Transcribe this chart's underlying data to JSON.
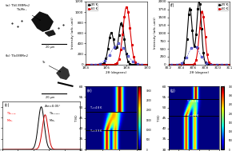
{
  "panel_a_label": "(a) Tb$_{0.999}$Mn$_2$",
  "panel_b_label": "(b) Tb$_{0.99}$Mn$_2$",
  "panel_c_delta": "Δre=0.05°",
  "panel_c_left": "Tb$_{0.999}$Mn$_2$",
  "panel_c_right": "Tb$_{0.9999}$Mn$_2$",
  "temp_35K": "35 K",
  "temp_60K": "60 K",
  "bg_color_ab": "#aaaaaa",
  "xrange_c": [
    38.6,
    39.6
  ],
  "xrange_d": [
    18.4,
    19.0
  ],
  "xrange_fg": [
    30.2,
    31.2
  ],
  "yrange_c": [
    0,
    18000
  ],
  "yrange_d": [
    0,
    1200
  ],
  "yrange_f": [
    0,
    2000
  ],
  "T_range": [
    30,
    60
  ],
  "Tc_e1": 39,
  "Tc_e2": 48,
  "Tc_g1": 46,
  "Tc_g2": 54,
  "label_e1": "T$_2$=48 K",
  "label_e2": "T$_2$=39 K",
  "label_g1": "T$_2$=54 K",
  "label_g2": "T$_1$=46 K"
}
